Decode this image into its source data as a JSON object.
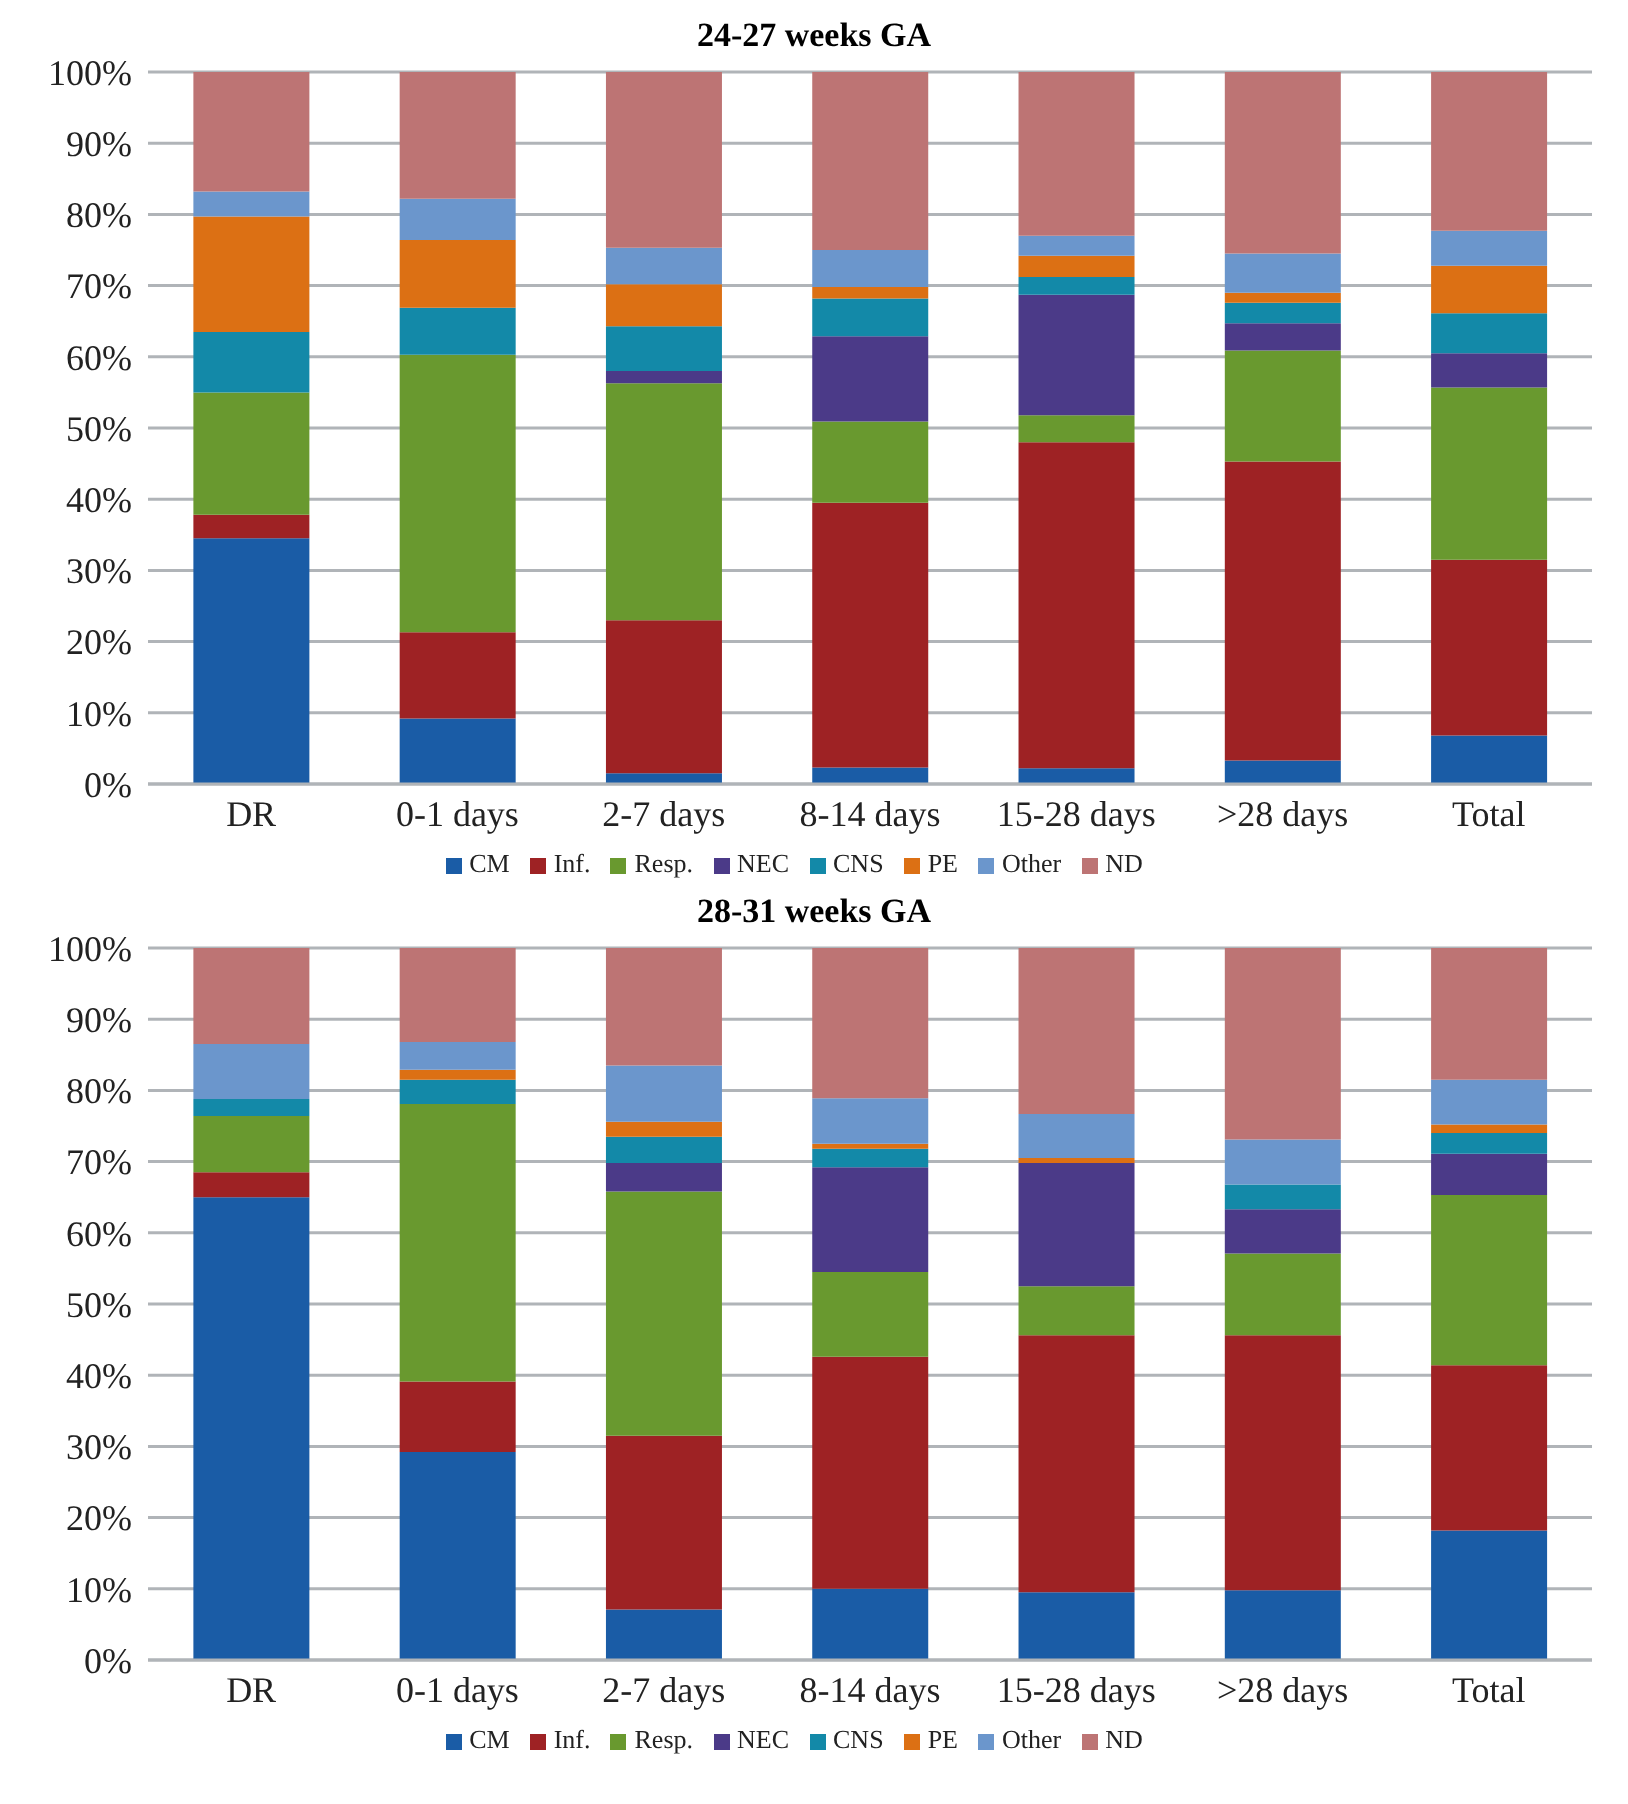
{
  "chart_data": [
    {
      "type": "bar",
      "title": "24-27 weeks GA",
      "stacked": true,
      "categories": [
        "DR",
        "0-1 days",
        "2-7 days",
        "8-14 days",
        "15-28 days",
        ">28 days",
        "Total"
      ],
      "ylim": [
        0,
        100
      ],
      "yticks": [
        {
          "value": 0,
          "label": "0%"
        },
        {
          "value": 10,
          "label": "10%"
        },
        {
          "value": 20,
          "label": "20%"
        },
        {
          "value": 30,
          "label": "30%"
        },
        {
          "value": 40,
          "label": "40%"
        },
        {
          "value": 50,
          "label": "50%"
        },
        {
          "value": 60,
          "label": "60%"
        },
        {
          "value": 70,
          "label": "70%"
        },
        {
          "value": 80,
          "label": "80%"
        },
        {
          "value": 90,
          "label": "90%"
        },
        {
          "value": 100,
          "label": "100%"
        }
      ],
      "grid": "y",
      "legend": "bottom",
      "series": [
        {
          "name": "CM",
          "color": "#1a5ca6",
          "values": [
            34.5,
            9.2,
            1.5,
            2.3,
            2.2,
            3.3,
            6.8
          ]
        },
        {
          "name": "Inf.",
          "color": "#9e2224",
          "values": [
            3.3,
            12.1,
            21.5,
            37.2,
            45.8,
            42,
            24.7
          ]
        },
        {
          "name": "Resp.",
          "color": "#69992f",
          "values": [
            17.2,
            39,
            33.3,
            11.4,
            3.8,
            15.6,
            24.2
          ]
        },
        {
          "name": "NEC",
          "color": "#4b3a88",
          "values": [
            0,
            0,
            1.7,
            12,
            16.9,
            3.8,
            4.8
          ]
        },
        {
          "name": "CNS",
          "color": "#1389a8",
          "values": [
            8.5,
            6.6,
            6.3,
            5.3,
            2.5,
            2.9,
            5.6
          ]
        },
        {
          "name": "PE",
          "color": "#dc7014",
          "values": [
            16.2,
            9.5,
            5.9,
            1.6,
            3,
            1.4,
            6.7
          ]
        },
        {
          "name": "Other",
          "color": "#6b96cc",
          "values": [
            3.5,
            5.8,
            5.1,
            5.2,
            2.8,
            5.5,
            4.9
          ]
        },
        {
          "name": "ND",
          "color": "#bd7474",
          "values": [
            16.8,
            17.8,
            24.7,
            25,
            23,
            25.5,
            22.3
          ]
        }
      ]
    },
    {
      "type": "bar",
      "title": "28-31 weeks GA",
      "stacked": true,
      "categories": [
        "DR",
        "0-1 days",
        "2-7 days",
        "8-14 days",
        "15-28 days",
        ">28 days",
        "Total"
      ],
      "ylim": [
        0,
        100
      ],
      "yticks": [
        {
          "value": 0,
          "label": "0%"
        },
        {
          "value": 10,
          "label": "10%"
        },
        {
          "value": 20,
          "label": "20%"
        },
        {
          "value": 30,
          "label": "30%"
        },
        {
          "value": 40,
          "label": "40%"
        },
        {
          "value": 50,
          "label": "50%"
        },
        {
          "value": 60,
          "label": "60%"
        },
        {
          "value": 70,
          "label": "70%"
        },
        {
          "value": 80,
          "label": "80%"
        },
        {
          "value": 90,
          "label": "90%"
        },
        {
          "value": 100,
          "label": "100%"
        }
      ],
      "grid": "y",
      "legend": "bottom",
      "series": [
        {
          "name": "CM",
          "color": "#1a5ca6",
          "values": [
            65,
            29.2,
            7.1,
            10,
            9.5,
            9.8,
            18.2
          ]
        },
        {
          "name": "Inf.",
          "color": "#9e2224",
          "values": [
            3.5,
            9.9,
            24.4,
            32.6,
            36.1,
            35.8,
            23.2
          ]
        },
        {
          "name": "Resp.",
          "color": "#69992f",
          "values": [
            7.9,
            39,
            34.3,
            11.9,
            6.9,
            11.5,
            23.9
          ]
        },
        {
          "name": "NEC",
          "color": "#4b3a88",
          "values": [
            0,
            0,
            4,
            14.7,
            17.3,
            6.2,
            5.8
          ]
        },
        {
          "name": "CNS",
          "color": "#1389a8",
          "values": [
            2.4,
            3.4,
            3.7,
            2.6,
            0,
            3.5,
            2.9
          ]
        },
        {
          "name": "PE",
          "color": "#dc7014",
          "values": [
            0,
            1.4,
            2.1,
            0.7,
            0.7,
            0,
            1.2
          ]
        },
        {
          "name": "Other",
          "color": "#6b96cc",
          "values": [
            7.7,
            3.9,
            7.9,
            6.4,
            6.2,
            6.3,
            6.3
          ]
        },
        {
          "name": "ND",
          "color": "#bd7474",
          "values": [
            13.5,
            13.2,
            16.5,
            21.1,
            23.3,
            26.9,
            18.5
          ]
        }
      ]
    }
  ]
}
